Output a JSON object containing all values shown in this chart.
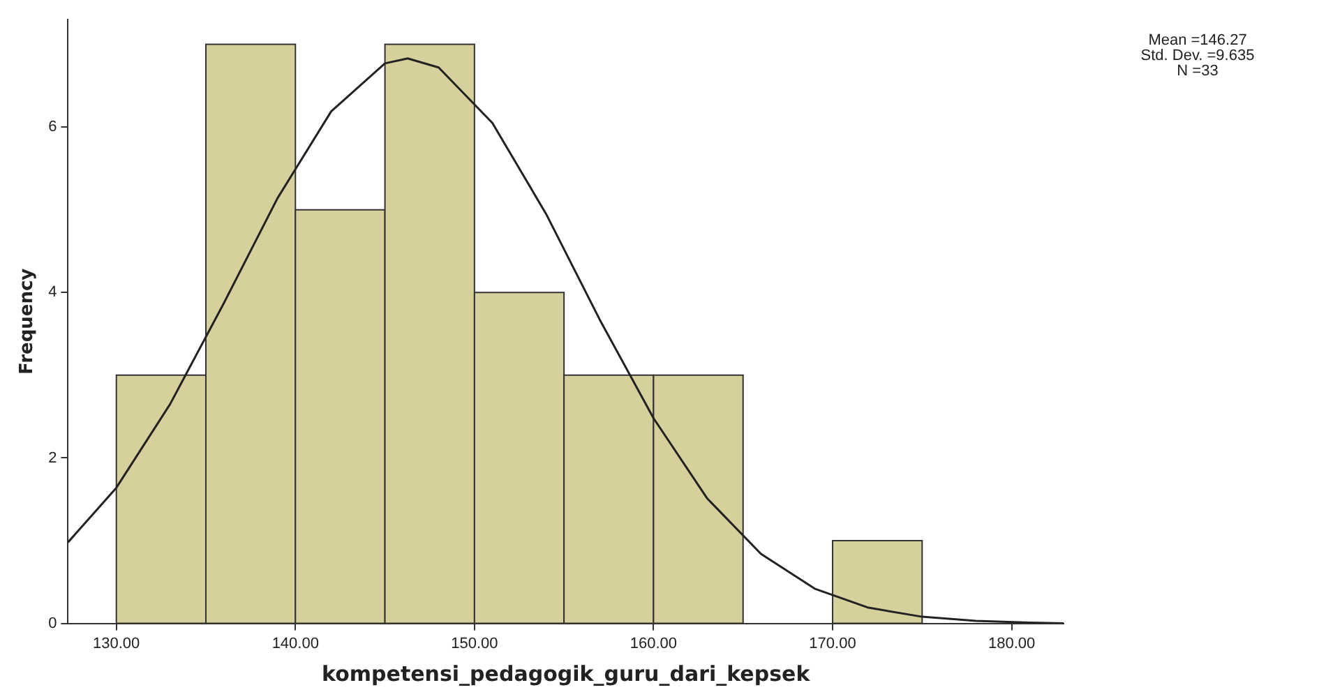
{
  "chart_data": {
    "type": "histogram",
    "xlabel": "kompetensi_pedagogik_guru_dari_kepsek",
    "ylabel": "Frequency",
    "bins": [
      130,
      135,
      140,
      145,
      150,
      155,
      160,
      165,
      170,
      175
    ],
    "values": [
      3,
      7,
      5,
      7,
      4,
      3,
      3,
      0,
      1
    ],
    "color": "#d6d09c",
    "series": [
      {
        "type": "line",
        "color": "#222222",
        "x": [
          127.3,
          130,
          133,
          136,
          139,
          142,
          145,
          146.27,
          148,
          151,
          154,
          157,
          160,
          163,
          166,
          169,
          172,
          175,
          178,
          181,
          182.9
        ],
        "values": [
          0.98,
          1.64,
          2.65,
          3.87,
          5.14,
          6.19,
          6.77,
          6.83,
          6.72,
          6.05,
          4.95,
          3.67,
          2.48,
          1.51,
          0.84,
          0.42,
          0.19,
          0.08,
          0.03,
          0.01,
          0
        ]
      }
    ],
    "xlim": [
      127.3,
      182.9
    ],
    "ylim": [
      0,
      7.3
    ],
    "xticks": [
      {
        "value": 130,
        "label": "130.00"
      },
      {
        "value": 140,
        "label": "140.00"
      },
      {
        "value": 150,
        "label": "150.00"
      },
      {
        "value": 160,
        "label": "160.00"
      },
      {
        "value": 170,
        "label": "170.00"
      },
      {
        "value": 180,
        "label": "180.00"
      }
    ],
    "yticks": [
      0,
      2,
      4,
      6
    ],
    "grid": false,
    "legend": false,
    "marker": "none",
    "annotations": [
      "Mean =146.27",
      "Std. Dev. =9.635",
      "N =33"
    ]
  }
}
